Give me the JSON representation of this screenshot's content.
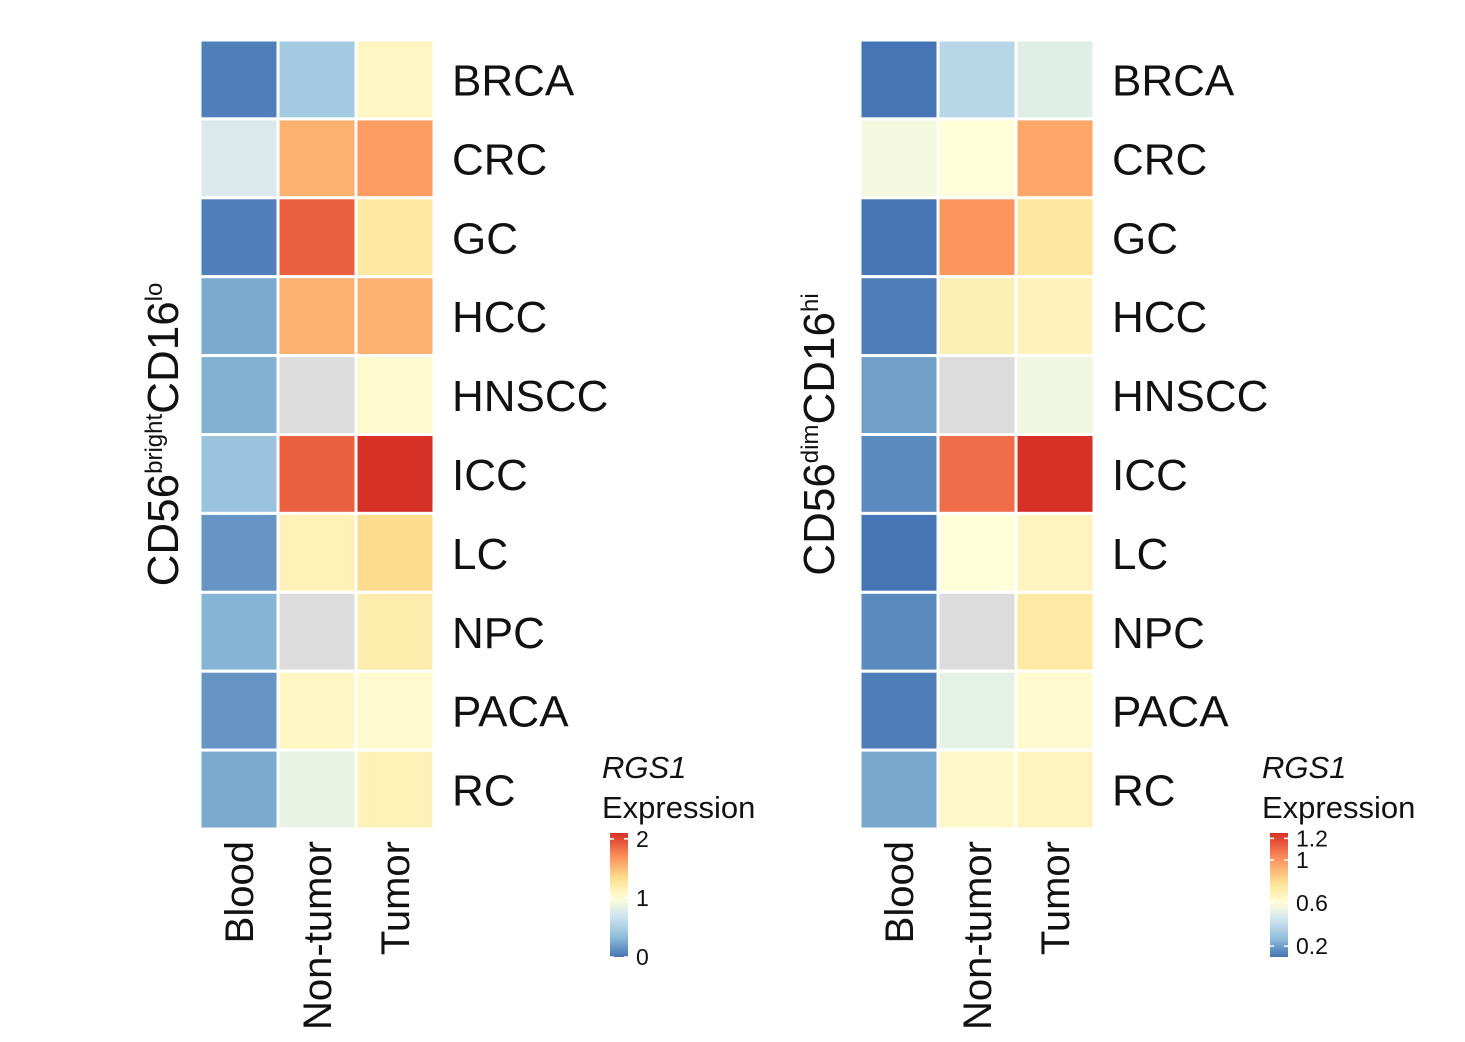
{
  "chart_data": [
    {
      "type": "heatmap",
      "ylabel": {
        "base": "CD56",
        "sup1": "bright",
        "mid": "CD16",
        "sup2": "lo"
      },
      "columns": [
        "Blood",
        "Non-tumor",
        "Tumor"
      ],
      "rows": [
        "BRCA",
        "CRC",
        "GC",
        "HCC",
        "HNSCC",
        "ICC",
        "LC",
        "NPC",
        "PACA",
        "RC"
      ],
      "values": [
        [
          0.05,
          0.45,
          1.1
        ],
        [
          0.75,
          1.55,
          1.65
        ],
        [
          0.05,
          1.9,
          1.25
        ],
        [
          0.25,
          1.55,
          1.55
        ],
        [
          0.28,
          null,
          1.05
        ],
        [
          0.4,
          1.9,
          2.1
        ],
        [
          0.15,
          1.15,
          1.35
        ],
        [
          0.3,
          null,
          1.2
        ],
        [
          0.15,
          1.1,
          1.05
        ],
        [
          0.25,
          0.85,
          1.15
        ]
      ],
      "legend": {
        "title_gene": "RGS1",
        "title_label": "Expression",
        "min": 0,
        "max": 2.1,
        "ticks": [
          0,
          1,
          2
        ],
        "tick_labels": [
          "0",
          "1",
          "2"
        ],
        "mid": 1
      }
    },
    {
      "type": "heatmap",
      "ylabel": {
        "base": "CD56",
        "sup1": "dim",
        "mid": "CD16",
        "sup2": "hi"
      },
      "columns": [
        "Blood",
        "Non-tumor",
        "Tumor"
      ],
      "rows": [
        "BRCA",
        "CRC",
        "GC",
        "HCC",
        "HNSCC",
        "ICC",
        "LC",
        "NPC",
        "PACA",
        "RC"
      ],
      "values": [
        [
          0.03,
          0.38,
          0.5
        ],
        [
          0.56,
          0.6,
          0.95
        ],
        [
          0.03,
          1.0,
          0.75
        ],
        [
          0.12,
          0.7,
          0.68
        ],
        [
          0.2,
          null,
          0.55
        ],
        [
          0.15,
          1.1,
          1.25
        ],
        [
          0.03,
          0.6,
          0.67
        ],
        [
          0.15,
          null,
          0.74
        ],
        [
          0.12,
          0.52,
          0.63
        ],
        [
          0.22,
          0.64,
          0.67
        ]
      ],
      "legend": {
        "title_gene": "RGS1",
        "title_label": "Expression",
        "min": 0.1,
        "max": 1.25,
        "ticks": [
          0.2,
          0.6,
          1,
          1.2
        ],
        "tick_labels": [
          "0.2",
          "0.6",
          "1",
          "1.2"
        ],
        "mid": 0.6
      }
    }
  ],
  "colors": {
    "na": "#dcdcdc",
    "low": "#4575b4",
    "mid": "#ffffd9",
    "high": "#d73027"
  }
}
